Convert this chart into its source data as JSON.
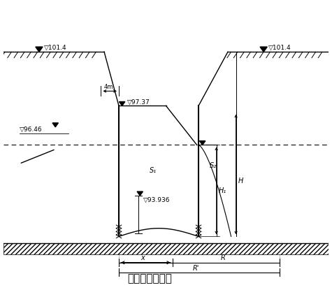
{
  "title": "涌水量计算简图",
  "title_fontsize": 11,
  "labels": {
    "water_level_left": "▽101.4",
    "water_level_right": "▽101.4",
    "level_97": "▽97.37",
    "level_96": "▽96.46",
    "level_93": "▽93.936",
    "level_right_tri": "▽",
    "dim_4m": "4m",
    "label_s1": "S₁",
    "label_s2": "S₂",
    "label_H1": "H₁",
    "label_H": "H",
    "label_x": "x",
    "label_R": "R",
    "label_R_prime": "R'"
  },
  "background_color": "#ffffff",
  "line_color": "#000000"
}
